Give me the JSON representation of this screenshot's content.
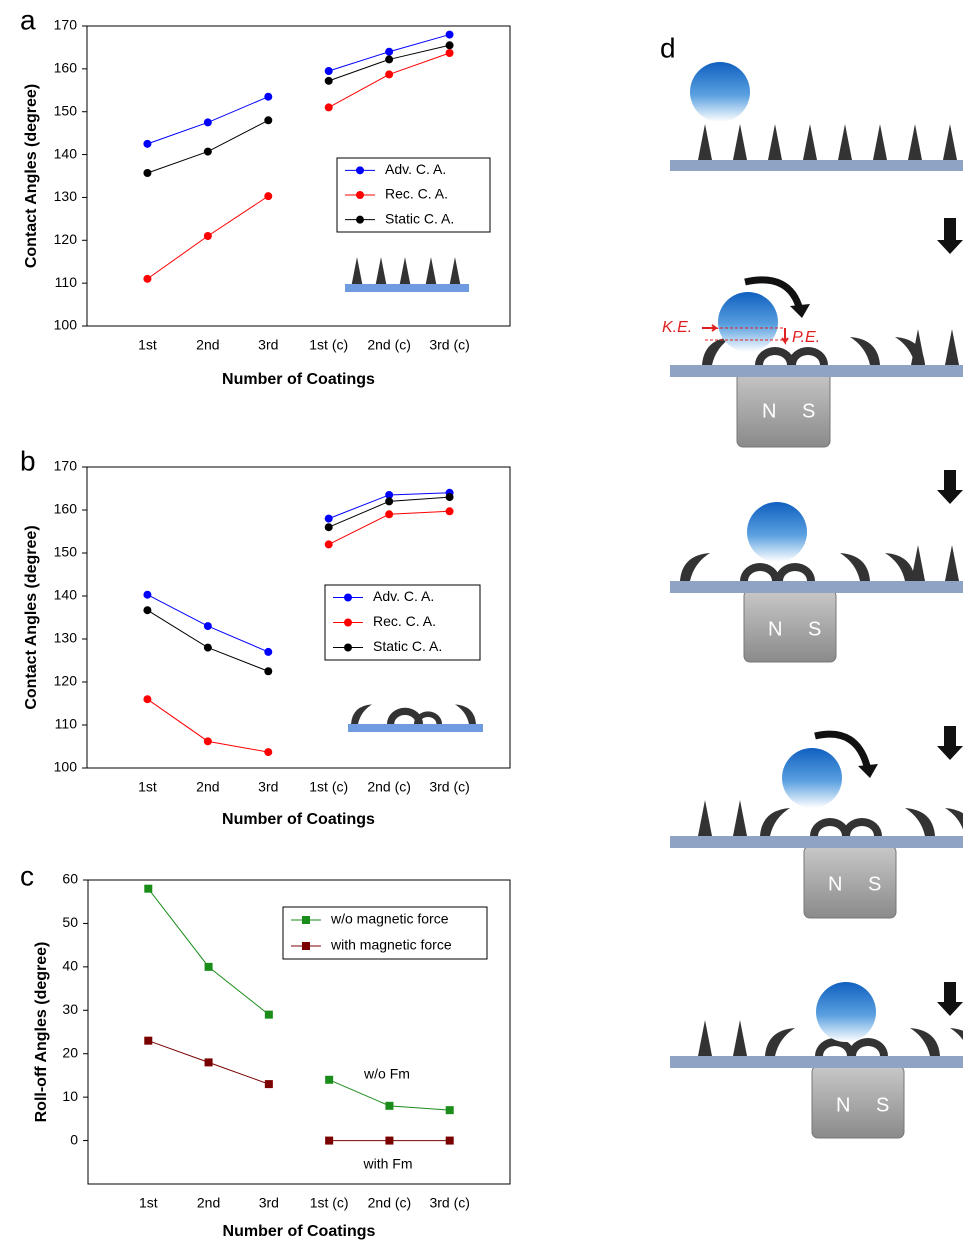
{
  "chart_data": [
    {
      "type": "line",
      "panel": "a",
      "x_label": "Number of Coatings",
      "y_label": "Contact Angles (degree)",
      "categories": [
        "1st",
        "2nd",
        "3rd",
        "1st (c)",
        "2nd (c)",
        "3rd (c)"
      ],
      "line_groups": [
        3,
        3
      ],
      "marker": "circle",
      "ylim": [
        100,
        170
      ],
      "yticks": [
        100,
        110,
        120,
        130,
        140,
        150,
        160,
        170
      ],
      "grid": false,
      "series": [
        {
          "name": "Adv. C. A.",
          "color": "#0000ff",
          "values": [
            142.5,
            147.5,
            153.5,
            159.5,
            164,
            168
          ]
        },
        {
          "name": "Rec. C. A.",
          "color": "#ff0000",
          "values": [
            111,
            121,
            130.3,
            151,
            158.7,
            163.7
          ]
        },
        {
          "name": "Static C. A.",
          "color": "#000000",
          "values": [
            135.7,
            140.7,
            148,
            157.2,
            162.2,
            165.5
          ]
        }
      ]
    },
    {
      "type": "line",
      "panel": "b",
      "x_label": "Number of Coatings",
      "y_label": "Contact Angles (degree)",
      "categories": [
        "1st",
        "2nd",
        "3rd",
        "1st (c)",
        "2nd (c)",
        "3rd (c)"
      ],
      "line_groups": [
        3,
        3
      ],
      "marker": "circle",
      "ylim": [
        100,
        170
      ],
      "yticks": [
        100,
        110,
        120,
        130,
        140,
        150,
        160,
        170
      ],
      "grid": false,
      "series": [
        {
          "name": "Adv. C. A.",
          "color": "#0000ff",
          "values": [
            140.3,
            133,
            127,
            158,
            163.5,
            164
          ]
        },
        {
          "name": "Rec. C. A.",
          "color": "#ff0000",
          "values": [
            116,
            106.2,
            103.7,
            152,
            159,
            159.7
          ]
        },
        {
          "name": "Static C. A.",
          "color": "#000000",
          "values": [
            136.7,
            128,
            122.5,
            156,
            162,
            163
          ]
        }
      ]
    },
    {
      "type": "line",
      "panel": "c",
      "x_label": "Number of Coatings",
      "y_label": "Roll-off Angles (degree)",
      "categories": [
        "1st",
        "2nd",
        "3rd",
        "1st (c)",
        "2nd (c)",
        "3rd (c)"
      ],
      "line_groups": [
        3,
        3
      ],
      "marker": "square",
      "ylim": [
        -10,
        60
      ],
      "yticks": [
        0,
        10,
        20,
        30,
        40,
        50,
        60
      ],
      "grid": false,
      "annotations": [
        "w/o Fm",
        "with Fm"
      ],
      "series": [
        {
          "name": "w/o magnetic force",
          "color": "#1a8c1a",
          "values": [
            58,
            40,
            29,
            14,
            8,
            7
          ]
        },
        {
          "name": "with magnetic force",
          "color": "#7a0000",
          "values": [
            23,
            18,
            13,
            0,
            0,
            0
          ]
        }
      ]
    }
  ],
  "diagram": {
    "panel": "d",
    "ke": "K.E.",
    "pe": "P.E.",
    "magnets": [
      {
        "n": "N",
        "s": "S"
      },
      {
        "n": "N",
        "s": "S"
      },
      {
        "n": "N",
        "s": "S"
      },
      {
        "n": "N",
        "s": "S"
      }
    ]
  }
}
